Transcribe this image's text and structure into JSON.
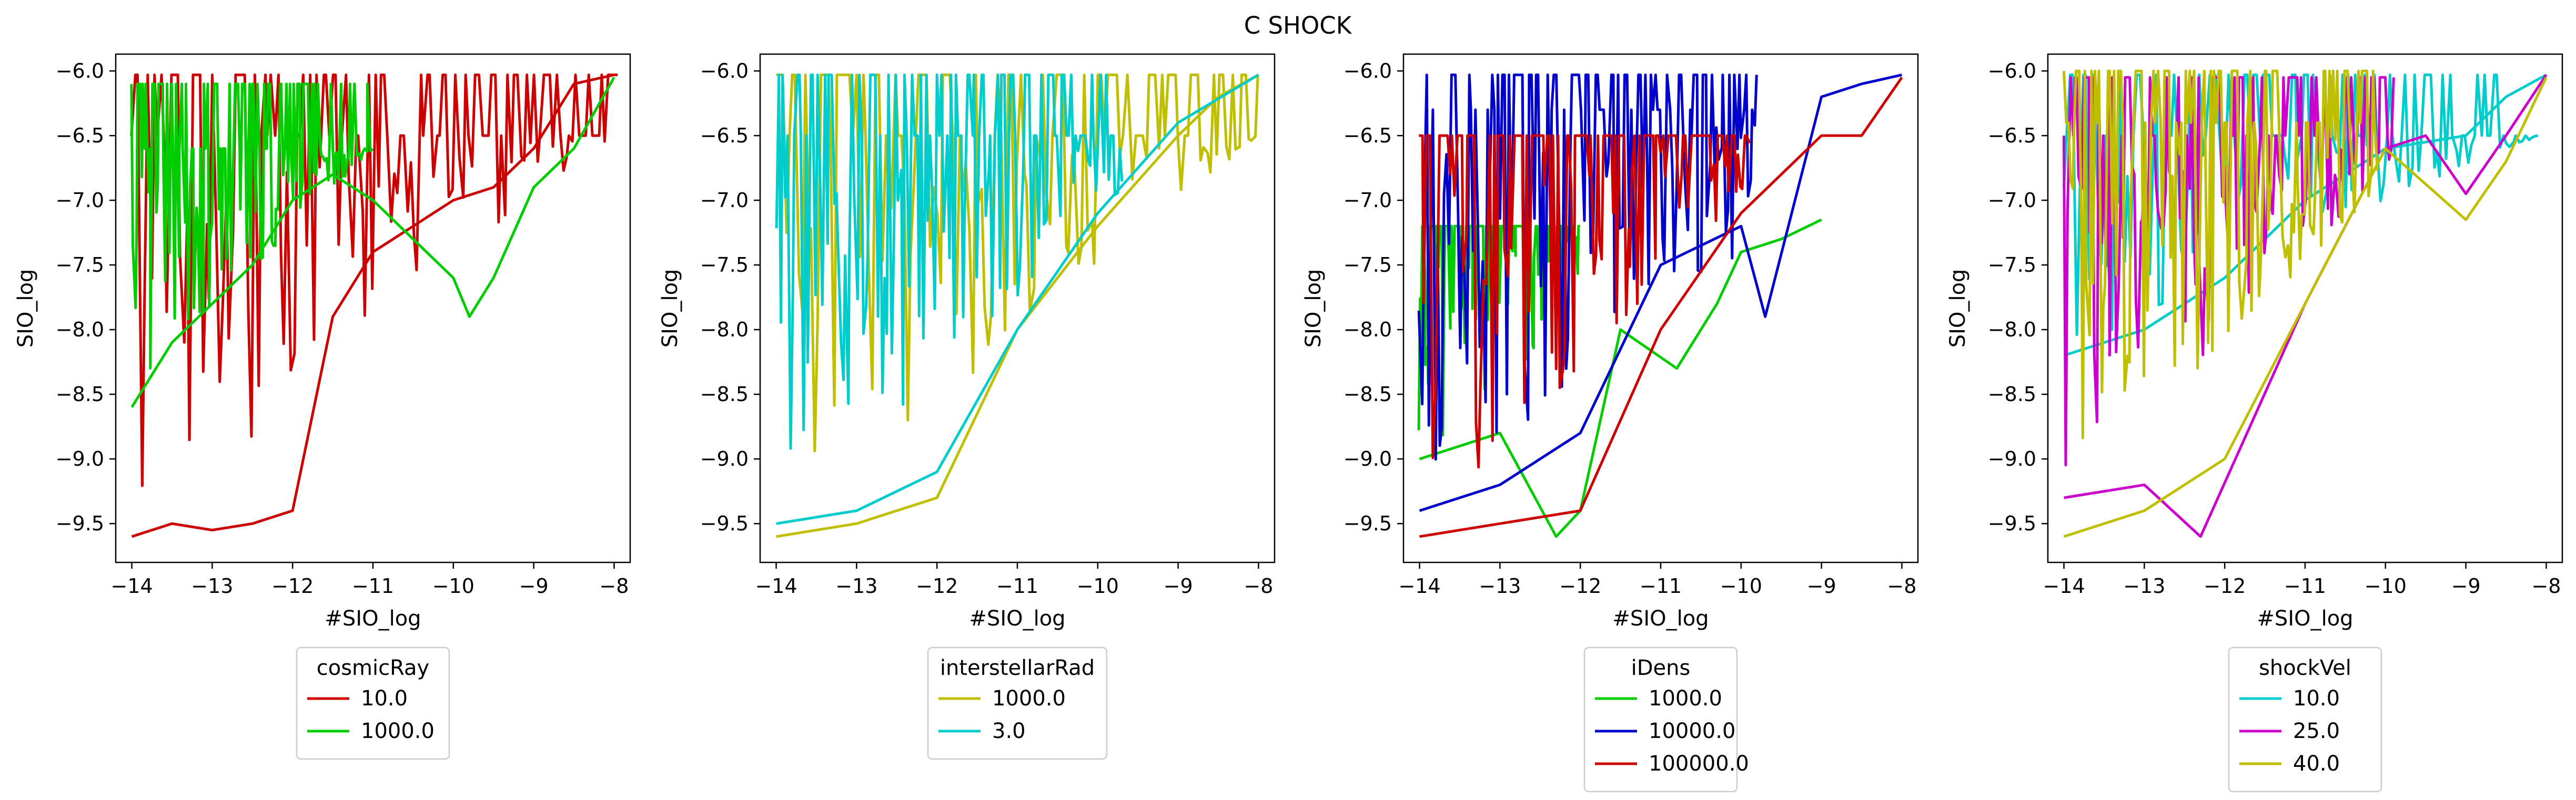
{
  "figure": {
    "title": "C SHOCK"
  },
  "chart_data": [
    {
      "type": "line",
      "xlabel": "#SIO_log",
      "ylabel": "SIO_log",
      "xlim": [
        -14.2,
        -7.8
      ],
      "ylim": [
        -9.8,
        -5.87
      ],
      "xticks": [
        -14,
        -13,
        -12,
        -11,
        -10,
        -9,
        -8
      ],
      "yticks": [
        -9.5,
        -9.0,
        -8.5,
        -8.0,
        -7.5,
        -7.0,
        -6.5,
        -6.0
      ],
      "grid": false,
      "legend": {
        "title": "cosmicRay",
        "position": "below"
      },
      "series": [
        {
          "name": "10.0",
          "color": "#cc0000",
          "region": {
            "x0": -14.0,
            "x1": -7.95,
            "minAtStart": -9.6,
            "minAtEnd": -6.5,
            "top": -6.03,
            "cap": -6.5
          },
          "x": [
            -14.0,
            -13.5,
            -13.0,
            -12.5,
            -12.0,
            -11.5,
            -11.0,
            -10.5,
            -10.0,
            -9.5,
            -9.0,
            -8.5,
            -8.0
          ],
          "y": [
            -9.6,
            -9.5,
            -9.55,
            -9.5,
            -9.4,
            -7.9,
            -7.4,
            -7.2,
            -7.0,
            -6.9,
            -6.6,
            -6.1,
            -6.03
          ]
        },
        {
          "name": "1000.0",
          "color": "#00cc00",
          "region": {
            "x0": -14.0,
            "x1": -11.0,
            "minAtStart": -8.6,
            "minAtEnd": -6.6,
            "top": -6.1,
            "cap": -6.6
          },
          "x": [
            -14.0,
            -13.5,
            -13.0,
            -12.5,
            -12.0,
            -11.5,
            -11.0,
            -10.5,
            -10.0,
            -9.8,
            -9.5,
            -9.0,
            -8.5,
            -8.0
          ],
          "y": [
            -8.6,
            -8.1,
            -7.8,
            -7.5,
            -7.0,
            -6.8,
            -7.0,
            -7.3,
            -7.6,
            -7.9,
            -7.6,
            -6.9,
            -6.6,
            -6.05
          ]
        }
      ]
    },
    {
      "type": "line",
      "xlabel": "#SIO_log",
      "ylabel": "SIO_log",
      "xlim": [
        -14.2,
        -7.8
      ],
      "ylim": [
        -9.8,
        -5.87
      ],
      "xticks": [
        -14,
        -13,
        -12,
        -11,
        -10,
        -9,
        -8
      ],
      "yticks": [
        -9.5,
        -9.0,
        -8.5,
        -8.0,
        -7.5,
        -7.0,
        -6.5,
        -6.0
      ],
      "grid": false,
      "legend": {
        "title": "interstellarRad",
        "position": "below"
      },
      "series": [
        {
          "name": "1000.0",
          "color": "#bfbf00",
          "region": {
            "x0": -14.0,
            "x1": -8.0,
            "minAtStart": -9.6,
            "minAtEnd": -6.5,
            "top": -6.03,
            "cap": -6.5
          },
          "x": [
            -14.0,
            -13.0,
            -12.0,
            -11.0,
            -10.0,
            -9.0,
            -8.5,
            -8.0
          ],
          "y": [
            -9.6,
            -9.5,
            -9.3,
            -8.0,
            -7.2,
            -6.5,
            -6.2,
            -6.03
          ]
        },
        {
          "name": "3.0",
          "color": "#00cccc",
          "region": {
            "x0": -14.0,
            "x1": -9.7,
            "minAtStart": -9.5,
            "minAtEnd": -7.0,
            "top": -6.03,
            "cap": -6.5
          },
          "x": [
            -14.0,
            -13.0,
            -12.0,
            -11.0,
            -10.0,
            -9.0,
            -8.0
          ],
          "y": [
            -9.5,
            -9.4,
            -9.1,
            -8.0,
            -7.1,
            -6.4,
            -6.03
          ]
        }
      ]
    },
    {
      "type": "line",
      "xlabel": "#SIO_log",
      "ylabel": "SIO_log",
      "xlim": [
        -14.2,
        -7.8
      ],
      "ylim": [
        -9.8,
        -5.87
      ],
      "xticks": [
        -14,
        -13,
        -12,
        -11,
        -10,
        -9,
        -8
      ],
      "yticks": [
        -9.5,
        -9.0,
        -8.5,
        -8.0,
        -7.5,
        -7.0,
        -6.5,
        -6.0
      ],
      "grid": false,
      "legend": {
        "title": "iDens",
        "position": "below"
      },
      "series": [
        {
          "name": "1000.0",
          "color": "#00cc00",
          "region": {
            "x0": -14.0,
            "x1": -12.0,
            "minAtStart": -9.0,
            "minAtEnd": -8.0,
            "top": -7.2,
            "cap": -7.2
          },
          "x": [
            -14.0,
            -13.0,
            -12.3,
            -12.0,
            -11.5,
            -10.8,
            -10.3,
            -10.0,
            -9.5,
            -9.0
          ],
          "y": [
            -9.0,
            -8.8,
            -9.6,
            -9.4,
            -8.0,
            -8.3,
            -7.8,
            -7.4,
            -7.3,
            -7.15
          ]
        },
        {
          "name": "10000.0",
          "color": "#0000cc",
          "region": {
            "x0": -14.0,
            "x1": -9.8,
            "minAtStart": -9.4,
            "minAtEnd": -7.3,
            "top": -6.03,
            "cap": -6.3
          },
          "x": [
            -14.0,
            -13.0,
            -12.0,
            -11.0,
            -10.0,
            -9.7,
            -9.0,
            -8.5,
            -8.0
          ],
          "y": [
            -9.4,
            -9.2,
            -8.8,
            -7.5,
            -7.2,
            -7.9,
            -6.2,
            -6.1,
            -6.03
          ]
        },
        {
          "name": "100000.0",
          "color": "#cc0000",
          "region": {
            "x0": -14.0,
            "x1": -9.9,
            "minAtStart": -9.6,
            "minAtEnd": -7.0,
            "top": -6.5,
            "cap": -6.5
          },
          "x": [
            -14.0,
            -13.0,
            -12.0,
            -11.0,
            -10.0,
            -9.0,
            -8.5,
            -8.0
          ],
          "y": [
            -9.6,
            -9.5,
            -9.4,
            -8.0,
            -7.1,
            -6.5,
            -6.5,
            -6.05
          ]
        }
      ]
    },
    {
      "type": "line",
      "xlabel": "#SIO_log",
      "ylabel": "SIO_log",
      "xlim": [
        -14.2,
        -7.8
      ],
      "ylim": [
        -9.8,
        -5.87
      ],
      "xticks": [
        -14,
        -13,
        -12,
        -11,
        -10,
        -9,
        -8
      ],
      "yticks": [
        -9.5,
        -9.0,
        -8.5,
        -8.0,
        -7.5,
        -7.0,
        -6.5,
        -6.0
      ],
      "grid": false,
      "legend": {
        "title": "shockVel",
        "position": "below"
      },
      "series": [
        {
          "name": "10.0",
          "color": "#00cccc",
          "region": {
            "x0": -14.0,
            "x1": -8.1,
            "minAtStart": -8.2,
            "minAtEnd": -6.5,
            "top": -6.03,
            "cap": -6.5
          },
          "x": [
            -14.0,
            -13.0,
            -12.0,
            -11.0,
            -10.0,
            -9.0,
            -8.5,
            -8.0
          ],
          "y": [
            -8.2,
            -8.0,
            -7.6,
            -7.0,
            -6.6,
            -6.5,
            -6.2,
            -6.03
          ]
        },
        {
          "name": "25.0",
          "color": "#cc00cc",
          "region": {
            "x0": -14.0,
            "x1": -9.9,
            "minAtStart": -9.3,
            "minAtEnd": -6.8,
            "top": -6.05,
            "cap": -6.5
          },
          "x": [
            -14.0,
            -13.0,
            -12.3,
            -11.0,
            -10.0,
            -9.5,
            -9.0,
            -8.5,
            -8.0
          ],
          "y": [
            -9.3,
            -9.2,
            -9.6,
            -7.8,
            -6.6,
            -6.5,
            -6.95,
            -6.5,
            -6.03
          ]
        },
        {
          "name": "40.0",
          "color": "#bfbf00",
          "region": {
            "x0": -14.0,
            "x1": -10.1,
            "minAtStart": -9.6,
            "minAtEnd": -6.9,
            "top": -6.0,
            "cap": -6.4
          },
          "x": [
            -14.0,
            -13.0,
            -12.0,
            -11.0,
            -10.0,
            -9.0,
            -8.5,
            -8.0
          ],
          "y": [
            -9.6,
            -9.4,
            -9.0,
            -7.8,
            -6.6,
            -7.15,
            -6.7,
            -6.05
          ]
        }
      ]
    }
  ]
}
